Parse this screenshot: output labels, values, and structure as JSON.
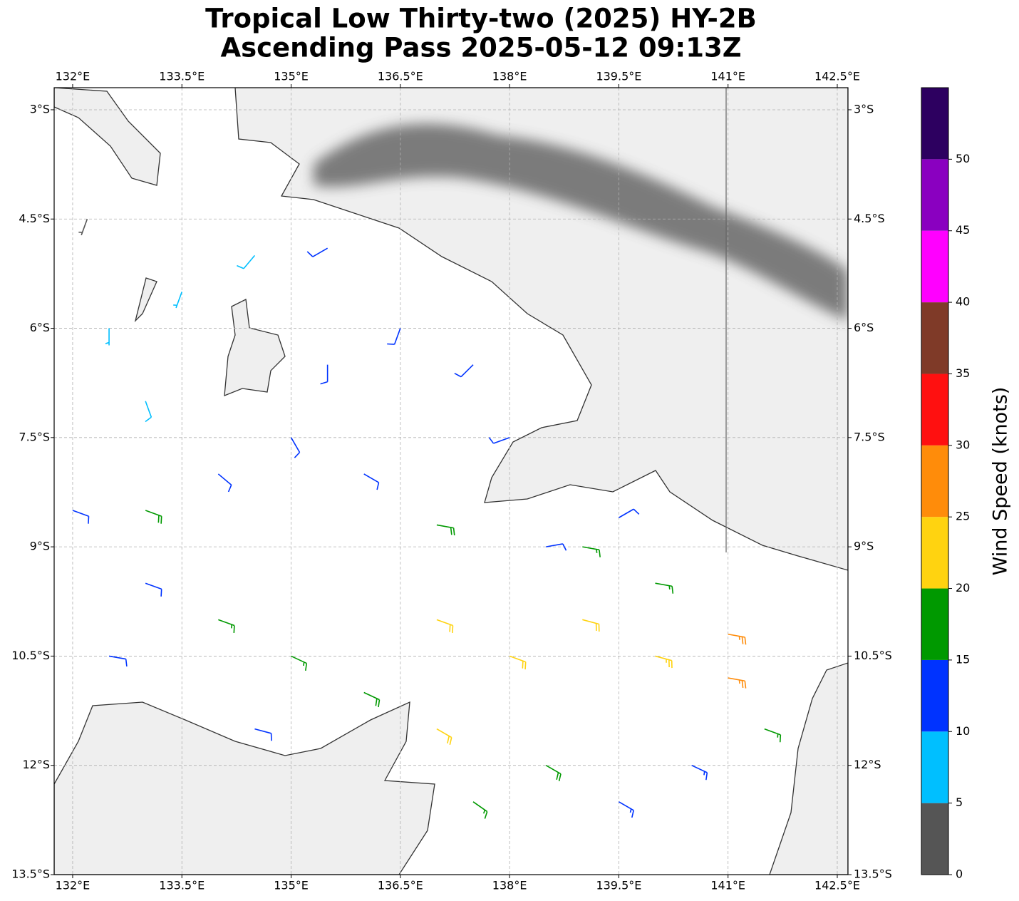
{
  "chart_data": {
    "type": "wind-barb-map",
    "title": "Tropical Low Thirty-two (2025) HY-2B",
    "subtitle": "Ascending Pass 2025-05-12 09:13Z",
    "xlim": [
      131.746,
      142.647
    ],
    "ylim": [
      -13.5,
      -2.697
    ],
    "xticks": [
      {
        "value": 132,
        "label": "132°E"
      },
      {
        "value": 133.5,
        "label": "133.5°E"
      },
      {
        "value": 135,
        "label": "135°E"
      },
      {
        "value": 136.5,
        "label": "136.5°E"
      },
      {
        "value": 138,
        "label": "138°E"
      },
      {
        "value": 139.5,
        "label": "139.5°E"
      },
      {
        "value": 141,
        "label": "141°E"
      },
      {
        "value": 142.5,
        "label": "142.5°E"
      }
    ],
    "yticks": [
      {
        "value": -3,
        "label": "3°S"
      },
      {
        "value": -4.5,
        "label": "4.5°S"
      },
      {
        "value": -6,
        "label": "6°S"
      },
      {
        "value": -7.5,
        "label": "7.5°S"
      },
      {
        "value": -9,
        "label": "9°S"
      },
      {
        "value": -10.5,
        "label": "10.5°S"
      },
      {
        "value": -12,
        "label": "12°S"
      },
      {
        "value": -13.5,
        "label": "13.5°S"
      }
    ],
    "grid": true,
    "barbs": {
      "lon": [
        133.0,
        134.0,
        135.0,
        136.0,
        137.0,
        138.0,
        139.0,
        140.0,
        141.0,
        141.0,
        140.0,
        139.0,
        138.5,
        137.5,
        139.5,
        140.5,
        141.5,
        137.0,
        134.5,
        132.5,
        135.5,
        136.5,
        137.5,
        138.0,
        136.0,
        135.0,
        134.0,
        133.0,
        132.5,
        133.5,
        134.5,
        135.5,
        132.2,
        132.0,
        137.0,
        138.5,
        139.5,
        133.0
      ],
      "lat": [
        -9.5,
        -10.0,
        -10.5,
        -11.0,
        -10.0,
        -10.5,
        -10.0,
        -10.5,
        -10.2,
        -10.8,
        -9.5,
        -9.0,
        -12.0,
        -12.5,
        -12.5,
        -12.0,
        -11.5,
        -11.5,
        -11.5,
        -10.5,
        -6.5,
        -6.0,
        -6.5,
        -7.5,
        -8.0,
        -7.5,
        -8.0,
        -7.0,
        -6.0,
        -5.5,
        -5.0,
        -4.9,
        -4.5,
        -8.5,
        -8.7,
        -9.0,
        -8.6,
        -8.5
      ],
      "speed": [
        12,
        17,
        17,
        18,
        22,
        22,
        22,
        23,
        27,
        27,
        17,
        17,
        18,
        17,
        13,
        13,
        17,
        22,
        12,
        12,
        12,
        12,
        12,
        12,
        12,
        12,
        12,
        8,
        7,
        7,
        8,
        12,
        4,
        12,
        18,
        12,
        12,
        18
      ],
      "direction": [
        110,
        110,
        115,
        115,
        110,
        110,
        105,
        105,
        100,
        100,
        100,
        100,
        120,
        125,
        120,
        115,
        110,
        120,
        105,
        100,
        180,
        200,
        225,
        250,
        120,
        150,
        130,
        160,
        180,
        200,
        220,
        240,
        200,
        110,
        100,
        80,
        60,
        110
      ]
    },
    "colorbar": {
      "label": "Wind Speed (knots)",
      "bounds": [
        0,
        5,
        10,
        15,
        20,
        25,
        30,
        35,
        40,
        45,
        50,
        55
      ],
      "colors": [
        "#555555",
        "#00bfff",
        "#0033ff",
        "#009900",
        "#ffd310",
        "#ff8c0a",
        "#ff1010",
        "#7f3a28",
        "#ff00ff",
        "#8a00c0",
        "#2d0060"
      ],
      "ticks": [
        0,
        5,
        10,
        15,
        20,
        25,
        30,
        35,
        40,
        45,
        50
      ]
    }
  }
}
